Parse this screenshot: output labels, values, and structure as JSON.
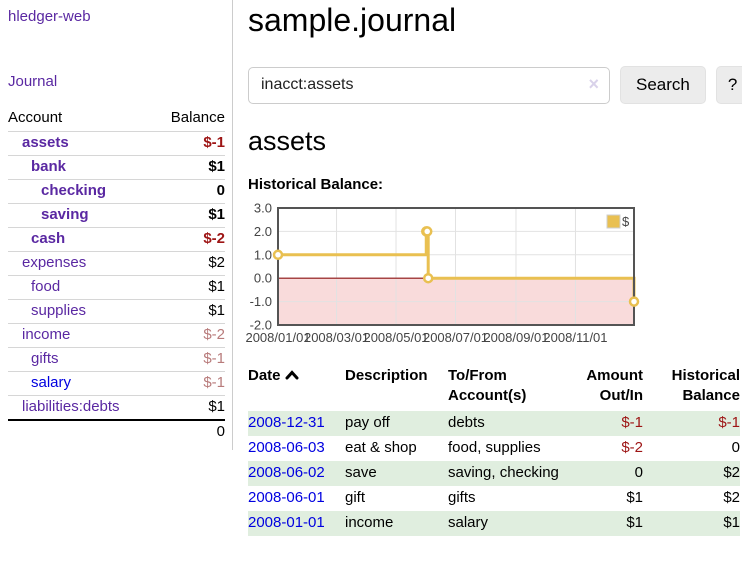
{
  "app": {
    "title": "hledger-web",
    "nav_journal": "Journal"
  },
  "sidebar": {
    "columns": {
      "account": "Account",
      "balance": "Balance"
    },
    "accounts": [
      {
        "name": "assets",
        "level": 1,
        "bold": true,
        "link": "purple",
        "balance": "$-1",
        "bal_class": "bal-neg-strong"
      },
      {
        "name": "bank",
        "level": 2,
        "bold": true,
        "link": "purple",
        "balance": "$1",
        "bal_class": ""
      },
      {
        "name": "checking",
        "level": 3,
        "bold": true,
        "link": "purple",
        "balance": "0",
        "bal_class": ""
      },
      {
        "name": "saving",
        "level": 3,
        "bold": true,
        "link": "purple",
        "balance": "$1",
        "bal_class": ""
      },
      {
        "name": "cash",
        "level": 2,
        "bold": true,
        "link": "purple",
        "balance": "$-2",
        "bal_class": "bal-neg-strong"
      },
      {
        "name": "expenses",
        "level": 1,
        "bold": false,
        "link": "purple",
        "balance": "$2",
        "bal_class": ""
      },
      {
        "name": "food",
        "level": 2,
        "bold": false,
        "link": "purple",
        "balance": "$1",
        "bal_class": ""
      },
      {
        "name": "supplies",
        "level": 2,
        "bold": false,
        "link": "purple",
        "balance": "$1",
        "bal_class": ""
      },
      {
        "name": "income",
        "level": 1,
        "bold": false,
        "link": "purple",
        "balance": "$-2",
        "bal_class": "bal-neg-soft"
      },
      {
        "name": "gifts",
        "level": 2,
        "bold": false,
        "link": "purple",
        "balance": "$-1",
        "bal_class": "bal-neg-soft"
      },
      {
        "name": "salary",
        "level": 2,
        "bold": false,
        "link": "blue",
        "balance": "$-1",
        "bal_class": "bal-neg-soft"
      },
      {
        "name": "liabilities:debts",
        "level": 1,
        "bold": false,
        "link": "purple",
        "balance": "$1",
        "bal_class": ""
      }
    ],
    "total": "0"
  },
  "main": {
    "title": "sample.journal",
    "search": {
      "value": "inacct:assets",
      "clear_icon": "×",
      "button": "Search",
      "help_button": "?"
    },
    "account_heading": "assets",
    "chart_title": "Historical Balance:"
  },
  "chart_data": {
    "type": "line",
    "style": "step",
    "title": "Historical Balance:",
    "series": [
      {
        "name": "$",
        "color": "#e9c051",
        "points": [
          [
            "2008-01-01",
            1
          ],
          [
            "2008-06-01",
            2
          ],
          [
            "2008-06-02",
            2
          ],
          [
            "2008-06-03",
            0
          ],
          [
            "2008-12-31",
            -1
          ]
        ]
      }
    ],
    "x_range": [
      "2008-01-01",
      "2008-12-31"
    ],
    "x_ticks": [
      "2008/01/01",
      "2008/03/01",
      "2008/05/01",
      "2008/07/01",
      "2008/09/01",
      "2008/11/01"
    ],
    "y_ticks": [
      3.0,
      2.0,
      1.0,
      0.0,
      -1.0,
      -2.0
    ],
    "ylim": [
      -2,
      3
    ],
    "legend": {
      "label": "$",
      "position": "top-right"
    },
    "grid": true,
    "grid_color": "#e2e2e2",
    "border_color": "#545454",
    "zero_line_color": "#8f1010",
    "negative_region_color": "#f9dbdb"
  },
  "register": {
    "headers": [
      {
        "label": "Date",
        "align": "left",
        "sort": "asc"
      },
      {
        "label": "Description",
        "align": "left"
      },
      {
        "label": "To/From Account(s)",
        "align": "left"
      },
      {
        "label": "Amount Out/In",
        "align": "right"
      },
      {
        "label": "Historical Balance",
        "align": "right"
      }
    ],
    "rows": [
      {
        "date": "2008-12-31",
        "description": "pay off",
        "accounts": "debts",
        "amount": "$-1",
        "amount_neg": true,
        "balance": "$-1",
        "balance_neg": true
      },
      {
        "date": "2008-06-03",
        "description": "eat & shop",
        "accounts": "food, supplies",
        "amount": "$-2",
        "amount_neg": true,
        "balance": "0",
        "balance_neg": false
      },
      {
        "date": "2008-06-02",
        "description": "save",
        "accounts": "saving, checking",
        "amount": "0",
        "amount_neg": false,
        "balance": "$2",
        "balance_neg": false
      },
      {
        "date": "2008-06-01",
        "description": "gift",
        "accounts": "gifts",
        "amount": "$1",
        "amount_neg": false,
        "balance": "$2",
        "balance_neg": false
      },
      {
        "date": "2008-01-01",
        "description": "income",
        "accounts": "salary",
        "amount": "$1",
        "amount_neg": false,
        "balance": "$1",
        "balance_neg": false
      }
    ]
  },
  "colors": {
    "link_purple": "#5a28a2",
    "link_blue": "#0000e0",
    "negative_strong": "#9d1414",
    "negative_soft": "#b87b7b",
    "row_stripe_green": "#e0eedf",
    "button_bg": "#ececec"
  }
}
